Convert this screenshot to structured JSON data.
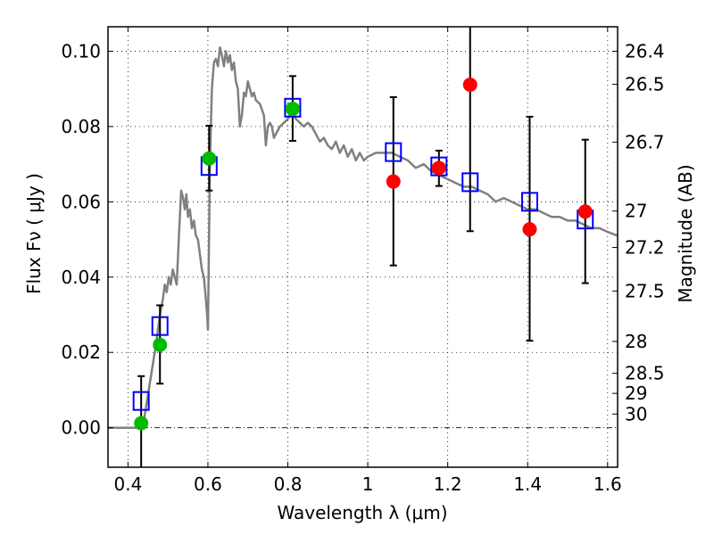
{
  "chart_data": {
    "type": "scatter",
    "title": "",
    "xlabel": "Wavelength  λ (μm)",
    "ylabel": "Flux  Fν  ( μJy )",
    "y2label": "Magnitude (AB)",
    "xlim": [
      0.35,
      1.625
    ],
    "ylim": [
      -0.0105,
      0.1065
    ],
    "grid": true,
    "x_ticks": [
      0.4,
      0.6,
      0.8,
      1.0,
      1.2,
      1.4,
      1.6
    ],
    "x_tick_labels": [
      "0.4",
      "0.6",
      "0.8",
      "1",
      "1.2",
      "1.4",
      "1.6"
    ],
    "y_ticks": [
      0.0,
      0.02,
      0.04,
      0.06,
      0.08,
      0.1
    ],
    "y_tick_labels": [
      "0.00",
      "0.02",
      "0.04",
      "0.06",
      "0.08",
      "0.10"
    ],
    "y2_ticks": [
      26.4,
      26.5,
      26.7,
      27,
      27.2,
      27.5,
      28,
      28.5,
      29,
      30
    ],
    "y2_tick_labels": [
      "26.4",
      "26.5",
      "26.7",
      "27",
      "27.2",
      "27.5",
      "28",
      "28.5",
      "29",
      "30"
    ],
    "magnitude_zeropoint_uJy": 23.9,
    "colors": {
      "model": "#808080",
      "observed_detected": "#00bb00",
      "observed_other": "#ff0000",
      "model_photometry": "#0000ff",
      "errorbar": "#000000"
    },
    "series": [
      {
        "name": "Model SED",
        "kind": "line",
        "x": [
          0.35,
          0.42,
          0.44,
          0.455,
          0.47,
          0.48,
          0.487,
          0.492,
          0.497,
          0.502,
          0.507,
          0.512,
          0.517,
          0.522,
          0.528,
          0.533,
          0.538,
          0.542,
          0.546,
          0.55,
          0.555,
          0.56,
          0.565,
          0.57,
          0.575,
          0.58,
          0.585,
          0.59,
          0.595,
          0.598,
          0.6,
          0.605,
          0.61,
          0.615,
          0.62,
          0.625,
          0.63,
          0.635,
          0.64,
          0.645,
          0.65,
          0.655,
          0.66,
          0.665,
          0.67,
          0.675,
          0.68,
          0.685,
          0.69,
          0.695,
          0.7,
          0.705,
          0.71,
          0.715,
          0.72,
          0.73,
          0.74,
          0.745,
          0.75,
          0.755,
          0.76,
          0.765,
          0.77,
          0.78,
          0.79,
          0.8,
          0.81,
          0.82,
          0.83,
          0.84,
          0.85,
          0.86,
          0.87,
          0.88,
          0.89,
          0.9,
          0.91,
          0.92,
          0.93,
          0.94,
          0.95,
          0.96,
          0.97,
          0.98,
          0.99,
          1.0,
          1.02,
          1.04,
          1.06,
          1.08,
          1.1,
          1.12,
          1.14,
          1.16,
          1.18,
          1.2,
          1.22,
          1.24,
          1.26,
          1.28,
          1.3,
          1.32,
          1.34,
          1.36,
          1.38,
          1.4,
          1.42,
          1.44,
          1.46,
          1.48,
          1.5,
          1.52,
          1.54,
          1.56,
          1.58,
          1.6,
          1.625
        ],
        "y": [
          0.0,
          0.0,
          0.002,
          0.012,
          0.022,
          0.03,
          0.034,
          0.038,
          0.036,
          0.04,
          0.038,
          0.042,
          0.04,
          0.038,
          0.052,
          0.063,
          0.061,
          0.058,
          0.062,
          0.056,
          0.058,
          0.053,
          0.055,
          0.051,
          0.05,
          0.046,
          0.042,
          0.04,
          0.034,
          0.03,
          0.026,
          0.07,
          0.09,
          0.097,
          0.098,
          0.096,
          0.101,
          0.099,
          0.096,
          0.1,
          0.097,
          0.099,
          0.095,
          0.097,
          0.092,
          0.09,
          0.08,
          0.083,
          0.089,
          0.088,
          0.092,
          0.09,
          0.088,
          0.089,
          0.087,
          0.086,
          0.083,
          0.075,
          0.08,
          0.081,
          0.08,
          0.077,
          0.078,
          0.08,
          0.081,
          0.082,
          0.084,
          0.082,
          0.081,
          0.08,
          0.081,
          0.08,
          0.078,
          0.076,
          0.077,
          0.075,
          0.074,
          0.076,
          0.073,
          0.075,
          0.072,
          0.074,
          0.071,
          0.073,
          0.071,
          0.072,
          0.073,
          0.073,
          0.073,
          0.072,
          0.071,
          0.069,
          0.07,
          0.068,
          0.067,
          0.066,
          0.065,
          0.064,
          0.064,
          0.063,
          0.062,
          0.06,
          0.061,
          0.06,
          0.059,
          0.058,
          0.058,
          0.057,
          0.056,
          0.056,
          0.055,
          0.055,
          0.054,
          0.053,
          0.053,
          0.052,
          0.051
        ]
      },
      {
        "name": "Model photometry",
        "kind": "open-square",
        "x": [
          0.433,
          0.48,
          0.603,
          0.812,
          1.064,
          1.178,
          1.256,
          1.405,
          1.544
        ],
        "y": [
          0.0071,
          0.027,
          0.0695,
          0.085,
          0.0732,
          0.0694,
          0.0652,
          0.06,
          0.0553
        ]
      },
      {
        "name": "Observed (green)",
        "kind": "filled-circle",
        "x": [
          0.433,
          0.48,
          0.603,
          0.812
        ],
        "y": [
          0.0012,
          0.022,
          0.0715,
          0.0847
        ],
        "err_low": [
          -0.0115,
          0.0117,
          0.063,
          0.0762
        ],
        "err_high": [
          0.0137,
          0.0325,
          0.0802,
          0.0934
        ]
      },
      {
        "name": "Observed (red)",
        "kind": "filled-circle",
        "x": [
          1.064,
          1.178,
          1.256,
          1.405,
          1.544
        ],
        "y": [
          0.0654,
          0.069,
          0.0911,
          0.0527,
          0.0574
        ],
        "err_low": [
          0.0431,
          0.0642,
          0.0522,
          0.0231,
          0.0384
        ],
        "err_high": [
          0.0878,
          0.0736,
          0.13,
          0.0826,
          0.0765
        ]
      }
    ]
  }
}
